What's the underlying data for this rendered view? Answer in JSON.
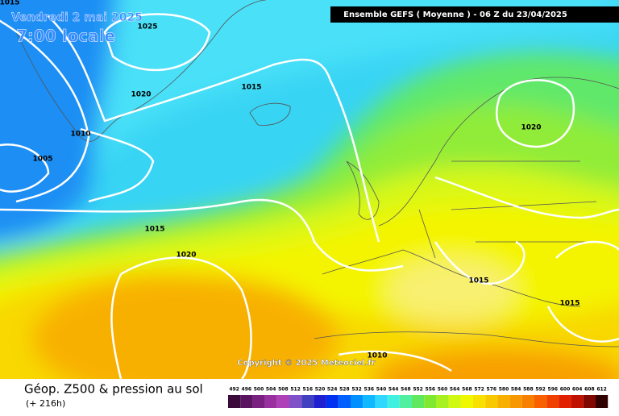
{
  "map": {
    "date": "Vendredi 2 mai 2025",
    "local_time": "7:00 locale",
    "header": "Ensemble GEFS  ( Moyenne )  -  06 Z du 23/04/2025",
    "copyright": "Copyright © 2025 Meteociel.fr",
    "isobar_labels": [
      "1015",
      "1025",
      "1020",
      "1015",
      "1010",
      "1005",
      "1020",
      "1015",
      "1020",
      "1015",
      "1015",
      "1010"
    ],
    "footer_title": "Géop. Z500 & pression au sol",
    "footer_subtitle": "(+ 216h)",
    "scale": {
      "labels": [
        "492",
        "496",
        "500",
        "504",
        "508",
        "512",
        "516",
        "520",
        "524",
        "528",
        "532",
        "536",
        "540",
        "544",
        "548",
        "552",
        "556",
        "560",
        "564",
        "568",
        "572",
        "576",
        "580",
        "584",
        "588",
        "592",
        "596",
        "600",
        "604",
        "608",
        "612"
      ],
      "colors": [
        "#3a0a3a",
        "#5a1460",
        "#7a2080",
        "#9a30a0",
        "#b040b8",
        "#8050c8",
        "#4040c0",
        "#2020d0",
        "#0030f0",
        "#0060ff",
        "#0090ff",
        "#10b8ff",
        "#30d8ff",
        "#40f0e0",
        "#50f0a0",
        "#60e860",
        "#80e830",
        "#a8f020",
        "#d0f810",
        "#f0f800",
        "#f8e000",
        "#f8c800",
        "#f8b000",
        "#f89800",
        "#f88000",
        "#f86000",
        "#f04000",
        "#e02000",
        "#c01000",
        "#800800",
        "#300000"
      ]
    }
  }
}
